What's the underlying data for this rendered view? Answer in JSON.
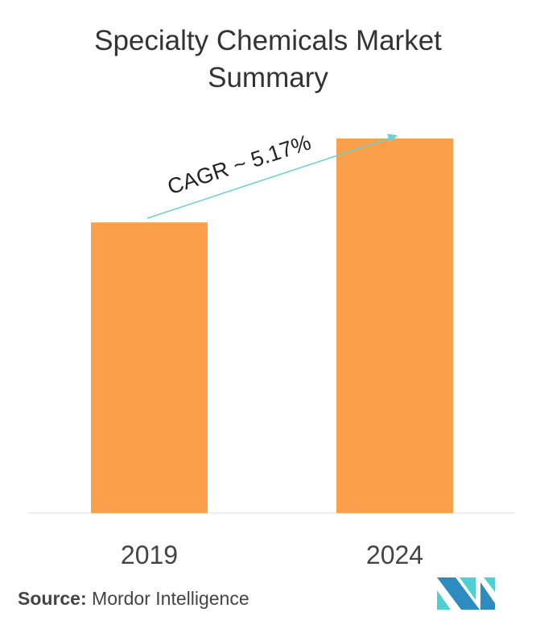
{
  "chart_data": {
    "type": "bar",
    "title_line1": "Specialty Chemicals Market",
    "title_line2": "Summary",
    "categories": [
      "2019",
      "2024"
    ],
    "values": [
      77.6,
      100
    ],
    "ylim": [
      0,
      100
    ],
    "xlabel": "",
    "ylabel": "",
    "grid": false,
    "annotation": "CAGR ~ 5.17%",
    "bar_color": "#FBA04A",
    "arrow_color": "#6FCFCF"
  },
  "source": {
    "label": "Source:",
    "text": "Mordor Intelligence"
  }
}
